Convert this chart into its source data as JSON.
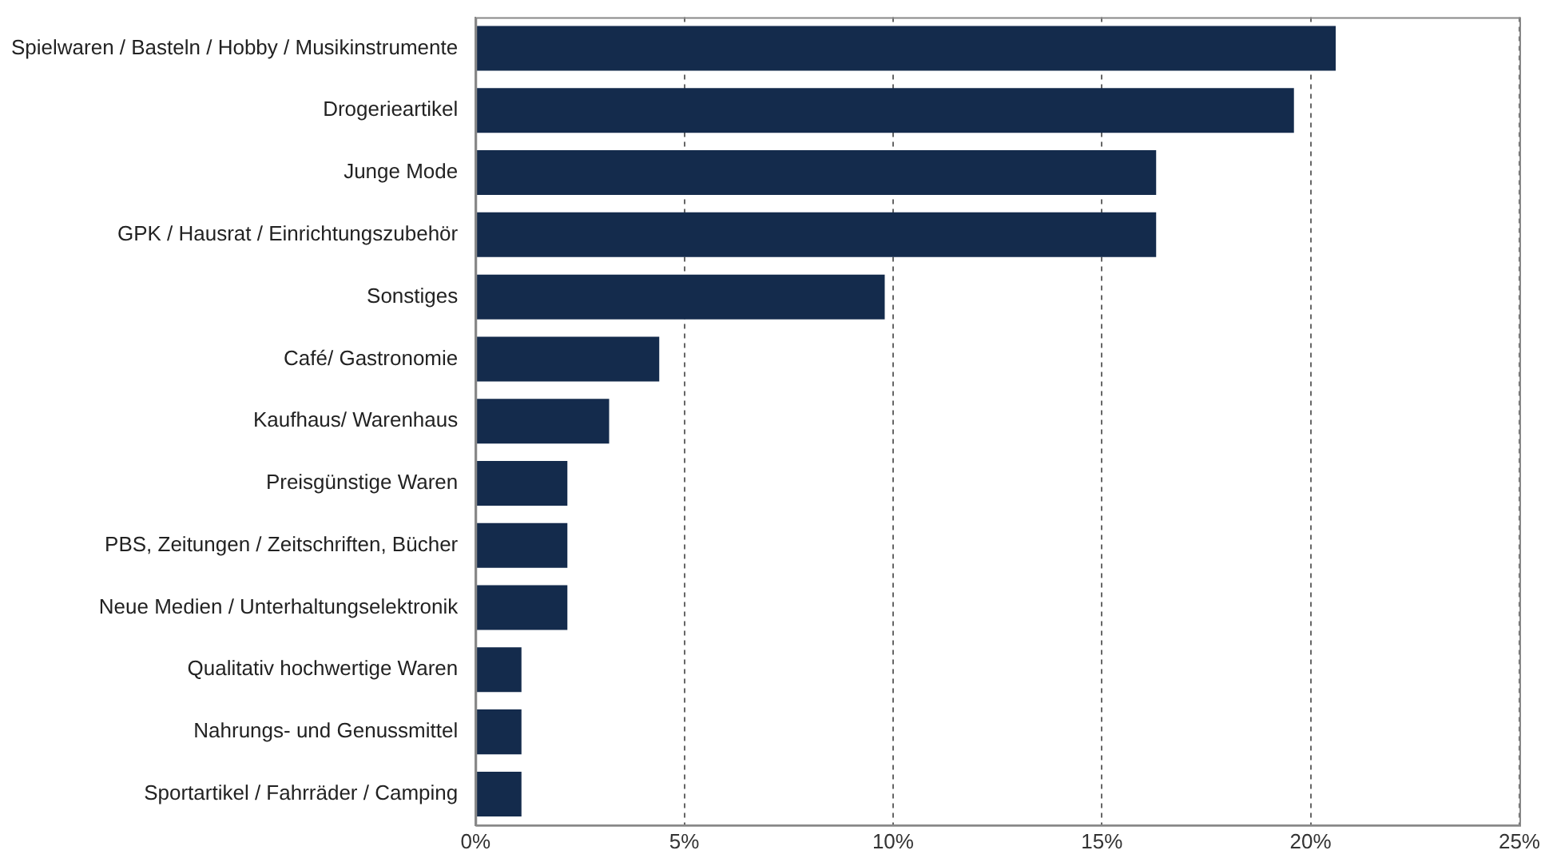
{
  "chart_data": {
    "type": "bar",
    "orientation": "horizontal",
    "categories": [
      "Spielwaren / Basteln / Hobby / Musikinstrumente",
      "Drogerieartikel",
      "Junge Mode",
      "GPK / Hausrat / Einrichtungszubehör",
      "Sonstiges",
      "Café/ Gastronomie",
      "Kaufhaus/ Warenhaus",
      "Preisgünstige Waren",
      "PBS, Zeitungen / Zeitschriften, Bücher",
      "Neue Medien / Unterhaltungselektronik",
      "Qualitativ hochwertige Waren",
      "Nahrungs- und Genussmittel",
      "Sportartikel / Fahrräder / Camping"
    ],
    "values": [
      20.6,
      19.6,
      16.3,
      16.3,
      9.8,
      4.4,
      3.2,
      2.2,
      2.2,
      2.2,
      1.1,
      1.1,
      1.1
    ],
    "color": "#142b4c",
    "xlim": [
      0,
      25
    ],
    "xticks": [
      {
        "value": 0,
        "label": "0%"
      },
      {
        "value": 5,
        "label": "5%"
      },
      {
        "value": 10,
        "label": "10%"
      },
      {
        "value": 15,
        "label": "15%"
      },
      {
        "value": 20,
        "label": "20%"
      },
      {
        "value": 25,
        "label": "25%"
      }
    ],
    "grid": "x",
    "legend": false
  }
}
